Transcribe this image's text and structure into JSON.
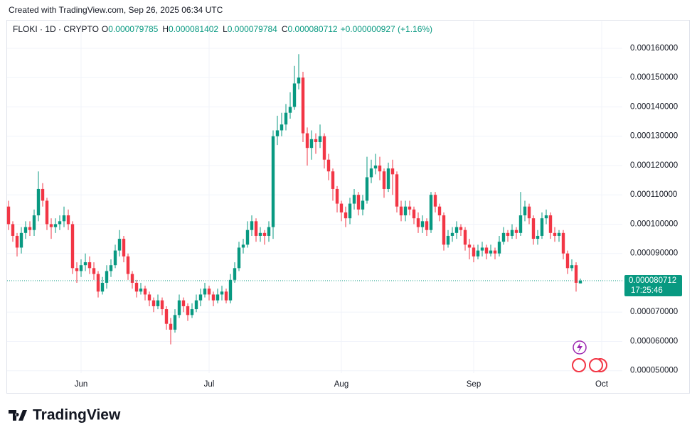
{
  "header": {
    "credit": "Created with TradingView.com, Sep 26, 2025 06:34 UTC"
  },
  "chart_data": {
    "type": "candlestick",
    "symbol": "FLOKI · 1D · CRYPTO",
    "legend": [
      {
        "label": "O",
        "field": "open"
      },
      {
        "label": "H",
        "field": "high"
      },
      {
        "label": "L",
        "field": "low"
      },
      {
        "label": "C",
        "field": "close"
      }
    ],
    "change_label": "+0.000000927 (+1.16%)",
    "countdown": "17:25:46",
    "colors": {
      "up": "#089981",
      "down": "#f23645"
    },
    "grid": true,
    "ylim": [
      4.92e-05,
      0.0001692
    ],
    "xlim": [
      0,
      134
    ],
    "yticks": [
      {
        "value": 0.00016,
        "label": "0.000160000"
      },
      {
        "value": 0.00015,
        "label": "0.000150000"
      },
      {
        "value": 0.00014,
        "label": "0.000140000"
      },
      {
        "value": 0.00013,
        "label": "0.000130000"
      },
      {
        "value": 0.00012,
        "label": "0.000120000"
      },
      {
        "value": 0.00011,
        "label": "0.000110000"
      },
      {
        "value": 0.0001,
        "label": "0.000100000"
      },
      {
        "value": 9e-05,
        "label": "0.000090000"
      },
      {
        "value": 7e-05,
        "label": "0.000070000"
      },
      {
        "value": 6e-05,
        "label": "0.000060000"
      },
      {
        "value": 5e-05,
        "label": "0.000050000"
      }
    ],
    "xticks": [
      {
        "value": 17,
        "label": "Jun"
      },
      {
        "value": 47,
        "label": "Jul"
      },
      {
        "value": 78,
        "label": "Aug"
      },
      {
        "value": 109,
        "label": "Sep"
      },
      {
        "value": 139,
        "label": "Oct"
      }
    ],
    "open": [
      0.000106,
      0.0001,
      9.6e-05,
      9.2e-05,
      9.7e-05,
      9.9e-05,
      9.8e-05,
      0.000103,
      0.000112,
      0.000108,
      0.0001,
      9.9e-05,
      0.0001,
      0.000101,
      0.000103,
      0.0001,
      8.5e-05,
      8.4e-05,
      8.6e-05,
      8.7e-05,
      8.5e-05,
      8.3e-05,
      7.7e-05,
      8e-05,
      8.4e-05,
      8.6e-05,
      9.1e-05,
      9.5e-05,
      8.9e-05,
      8.3e-05,
      8e-05,
      7.7e-05,
      7.8e-05,
      7.6e-05,
      7.4e-05,
      7.2e-05,
      7.4e-05,
      7.1e-05,
      6.6e-05,
      6.4e-05,
      6.9e-05,
      7.4e-05,
      7.2e-05,
      6.9e-05,
      7.1e-05,
      7.4e-05,
      7.6e-05,
      7.8e-05,
      7.6e-05,
      7.4e-05,
      7.6e-05,
      7.7e-05,
      7.4e-05,
      8.1e-05,
      8.5e-05,
      9.2e-05,
      9.3e-05,
      9.8e-05,
      0.000101,
      9.6e-05,
      9.7e-05,
      9.6e-05,
      9.9e-05,
      0.00013,
      0.000132,
      0.000134,
      0.000138,
      0.00014,
      0.000148,
      0.00015,
      0.000131,
      0.000126,
      0.000129,
      0.000128,
      0.00013,
      0.000122,
      0.000118,
      0.000112,
      0.000107,
      0.000104,
      0.000102,
      0.000107,
      0.00011,
      0.000105,
      0.000108,
      0.000116,
      0.000119,
      0.00012,
      0.000118,
      0.000112,
      0.000119,
      0.000117,
      0.000106,
      0.000103,
      0.000106,
      0.000105,
      0.000102,
      9.9e-05,
      0.000101,
      9.8e-05,
      0.00011,
      0.000106,
      0.000103,
      9.3e-05,
      9.6e-05,
      9.7e-05,
      9.9e-05,
      9.8e-05,
      9.3e-05,
      9.2e-05,
      8.9e-05,
      9.1e-05,
      9.2e-05,
      9e-05,
      9.1e-05,
      9e-05,
      9.4e-05,
      9.7e-05,
      9.6e-05,
      9.8e-05,
      9.7e-05,
      0.000103,
      0.000106,
      0.000102,
      9.5e-05,
      9.6e-05,
      0.000102,
      0.000103,
      9.7e-05,
      9.6e-05,
      9.7e-05,
      9e-05,
      8.5e-05,
      8.6e-05,
      7.9785e-05
    ],
    "high": [
      0.000108,
      0.000101,
      9.7e-05,
      9.9e-05,
      0.000101,
      0.000101,
      0.000105,
      0.000118,
      0.000114,
      0.000109,
      0.000102,
      0.000102,
      0.000103,
      0.000106,
      0.000105,
      0.000101,
      8.7e-05,
      8.8e-05,
      9e-05,
      8.9e-05,
      8.7e-05,
      8.4e-05,
      8.2e-05,
      8.6e-05,
      8.8e-05,
      9.3e-05,
      9.8e-05,
      9.6e-05,
      9e-05,
      8.4e-05,
      8.1e-05,
      8e-05,
      7.9e-05,
      7.7e-05,
      7.5e-05,
      7.6e-05,
      7.5e-05,
      7.2e-05,
      6.8e-05,
      7.1e-05,
      7.6e-05,
      7.5e-05,
      7.3e-05,
      7.3e-05,
      7.6e-05,
      7.8e-05,
      8e-05,
      7.9e-05,
      7.7e-05,
      7.8e-05,
      7.9e-05,
      7.8e-05,
      8.3e-05,
      8.7e-05,
      9.4e-05,
      9.5e-05,
      0.000101,
      0.000103,
      0.000102,
      9.9e-05,
      9.8e-05,
      0.000101,
      0.000132,
      0.000137,
      0.000138,
      0.000141,
      0.000145,
      0.000154,
      0.000158,
      0.000152,
      0.000133,
      0.000132,
      0.000131,
      0.000134,
      0.000131,
      0.000124,
      0.000119,
      0.000113,
      0.000108,
      0.000106,
      0.000109,
      0.000112,
      0.000111,
      0.00011,
      0.000123,
      0.000122,
      0.000124,
      0.000123,
      0.000119,
      0.000121,
      0.000122,
      0.000118,
      0.000108,
      0.000108,
      0.000108,
      0.000106,
      0.000104,
      0.000103,
      0.000102,
      0.000111,
      0.000111,
      0.000107,
      0.000104,
      9.8e-05,
      9.9e-05,
      0.000101,
      0.0001,
      9.9e-05,
      9.5e-05,
      9.3e-05,
      9.3e-05,
      9.4e-05,
      9.3e-05,
      9.3e-05,
      9.2e-05,
      9.6e-05,
      9.9e-05,
      9.8e-05,
      0.0001,
      9.9e-05,
      0.000111,
      0.000108,
      0.000107,
      0.000103,
      9.8e-05,
      0.000104,
      0.000105,
      0.000104,
      9.9e-05,
      9.8e-05,
      9.8e-05,
      9.1e-05,
      8.8e-05,
      8.7e-05,
      8.1402e-05
    ],
    "low": [
      9.8e-05,
      9.4e-05,
      8.9e-05,
      9e-05,
      9.5e-05,
      9.6e-05,
      9.6e-05,
      0.000101,
      0.000106,
      9.8e-05,
      9.5e-05,
      9.7e-05,
      9.8e-05,
      9.9e-05,
      9.8e-05,
      8.3e-05,
      8e-05,
      8.2e-05,
      8.4e-05,
      8.3e-05,
      8.1e-05,
      7.5e-05,
      7.6e-05,
      7.8e-05,
      8.2e-05,
      8.5e-05,
      8.9e-05,
      8.7e-05,
      8.1e-05,
      7.8e-05,
      7.5e-05,
      7.6e-05,
      7.4e-05,
      7.2e-05,
      7e-05,
      7.1e-05,
      6.9e-05,
      6.4e-05,
      5.9e-05,
      6.3e-05,
      6.8e-05,
      7e-05,
      6.7e-05,
      6.8e-05,
      7e-05,
      7.2e-05,
      7.5e-05,
      7.4e-05,
      7.2e-05,
      7.3e-05,
      7.4e-05,
      7.3e-05,
      7.3e-05,
      8e-05,
      8.4e-05,
      9e-05,
      9.2e-05,
      9.6e-05,
      9.4e-05,
      9.4e-05,
      9.3e-05,
      9.4e-05,
      9.5e-05,
      0.000127,
      0.00013,
      0.000132,
      0.000136,
      0.000139,
      0.000146,
      0.000128,
      0.00012,
      0.000122,
      0.000124,
      0.000126,
      0.000119,
      0.000115,
      0.000108,
      0.000104,
      0.000101,
      9.9e-05,
      0.0001,
      0.000105,
      0.000103,
      0.000103,
      0.000107,
      0.000114,
      0.000117,
      0.000115,
      0.000109,
      0.000111,
      0.00011,
      0.000104,
      0.000101,
      0.000101,
      0.000103,
      0.0001,
      9.7e-05,
      9.7e-05,
      9.6e-05,
      9.7e-05,
      0.000104,
      0.000101,
      9.1e-05,
      9.2e-05,
      9.4e-05,
      9.5e-05,
      9.6e-05,
      9.1e-05,
      8.8e-05,
      8.7e-05,
      8.8e-05,
      8.9e-05,
      8.8e-05,
      8.9e-05,
      8.8e-05,
      8.9e-05,
      9.3e-05,
      9.4e-05,
      9.5e-05,
      9.5e-05,
      9.6e-05,
      0.000101,
      0.0001,
      9.3e-05,
      9.3e-05,
      9.5e-05,
      0.0001,
      9.5e-05,
      9.4e-05,
      9.4e-05,
      8.8e-05,
      8.3e-05,
      8.4e-05,
      7.7e-05,
      7.9784e-05
    ],
    "close": [
      0.0001,
      9.6e-05,
      9.2e-05,
      9.7e-05,
      9.9e-05,
      9.8e-05,
      0.000103,
      0.000112,
      0.000108,
      0.0001,
      9.9e-05,
      0.0001,
      0.000101,
      0.000103,
      0.0001,
      8.5e-05,
      8.4e-05,
      8.6e-05,
      8.7e-05,
      8.5e-05,
      8.3e-05,
      7.7e-05,
      8e-05,
      8.4e-05,
      8.6e-05,
      9.1e-05,
      9.5e-05,
      8.9e-05,
      8.3e-05,
      8e-05,
      7.7e-05,
      7.8e-05,
      7.6e-05,
      7.4e-05,
      7.2e-05,
      7.4e-05,
      7.1e-05,
      6.6e-05,
      6.4e-05,
      6.9e-05,
      7.4e-05,
      7.2e-05,
      6.9e-05,
      7.1e-05,
      7.4e-05,
      7.6e-05,
      7.8e-05,
      7.6e-05,
      7.4e-05,
      7.6e-05,
      7.7e-05,
      7.4e-05,
      8.1e-05,
      8.5e-05,
      9.2e-05,
      9.3e-05,
      9.8e-05,
      0.000101,
      9.6e-05,
      9.7e-05,
      9.6e-05,
      9.9e-05,
      0.00013,
      0.000132,
      0.000134,
      0.000138,
      0.00014,
      0.000148,
      0.00015,
      0.000131,
      0.000126,
      0.000129,
      0.000128,
      0.00013,
      0.000122,
      0.000118,
      0.000112,
      0.000107,
      0.000104,
      0.000102,
      0.000107,
      0.00011,
      0.000105,
      0.000108,
      0.000116,
      0.000119,
      0.00012,
      0.000118,
      0.000112,
      0.000119,
      0.000117,
      0.000106,
      0.000103,
      0.000106,
      0.000105,
      0.000102,
      9.9e-05,
      0.000101,
      9.8e-05,
      0.00011,
      0.000106,
      0.000103,
      9.3e-05,
      9.6e-05,
      9.7e-05,
      9.9e-05,
      9.8e-05,
      9.3e-05,
      9.2e-05,
      8.9e-05,
      9.1e-05,
      9.2e-05,
      9e-05,
      9.1e-05,
      9e-05,
      9.4e-05,
      9.7e-05,
      9.6e-05,
      9.8e-05,
      9.7e-05,
      0.000103,
      0.000106,
      0.000102,
      9.5e-05,
      9.6e-05,
      0.000102,
      0.000103,
      9.7e-05,
      9.6e-05,
      9.7e-05,
      9e-05,
      8.5e-05,
      8.6e-05,
      8e-05,
      8.0712e-05
    ]
  },
  "footer": {
    "brand": "TradingView"
  }
}
